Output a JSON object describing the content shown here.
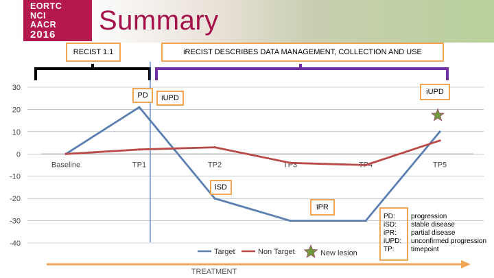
{
  "header": {
    "logo_lines": [
      "EORTC",
      "NCI",
      "AACR",
      "2016"
    ],
    "title": "Summary"
  },
  "boxes": {
    "recist": "RECIST 1.1",
    "irecist": "iRECIST DESCRIBES DATA MANAGEMENT, COLLECTION AND USE",
    "pd": "PD",
    "iupd_left": "iUPD",
    "iupd_right": "iUPD",
    "isd": "iSD",
    "ipr": "iPR"
  },
  "legend": {
    "target": "Target",
    "non_target": "Non Target",
    "new_lesion": "New lesion"
  },
  "definitions": [
    {
      "key": "PD:",
      "value": "progression"
    },
    {
      "key": "iSD:",
      "value": "stable disease"
    },
    {
      "key": "iPR:",
      "value": "partial disease"
    },
    {
      "key": "iUPD:",
      "value": "unconfirmed progression"
    },
    {
      "key": "TP:",
      "value": "timepoint"
    }
  ],
  "treatment_label": "TREATMENT",
  "colors": {
    "title": "#a5114a",
    "logo_bg": "#b5174f",
    "target": "#5a7fb0",
    "non_target": "#b84a48",
    "box_border": "#f0a555",
    "treatment_arrow": "#f0a555",
    "star_fill": "#6f9a3c",
    "divider": "#4472c4"
  },
  "chart_data": {
    "type": "line",
    "categories": [
      "Baseline",
      "TP1",
      "TP2",
      "TP3",
      "TP4",
      "TP5"
    ],
    "ylim": [
      -40,
      30
    ],
    "yticks": [
      30,
      20,
      10,
      0,
      -10,
      -20,
      -30,
      -40
    ],
    "series": [
      {
        "name": "Target",
        "values": [
          0,
          21,
          -20,
          -30,
          -30,
          10
        ]
      },
      {
        "name": "Non Target",
        "values": [
          0,
          2,
          3,
          -4,
          -5,
          6
        ]
      }
    ],
    "new_lesion_at": "TP5",
    "legend_position": "bottom"
  }
}
